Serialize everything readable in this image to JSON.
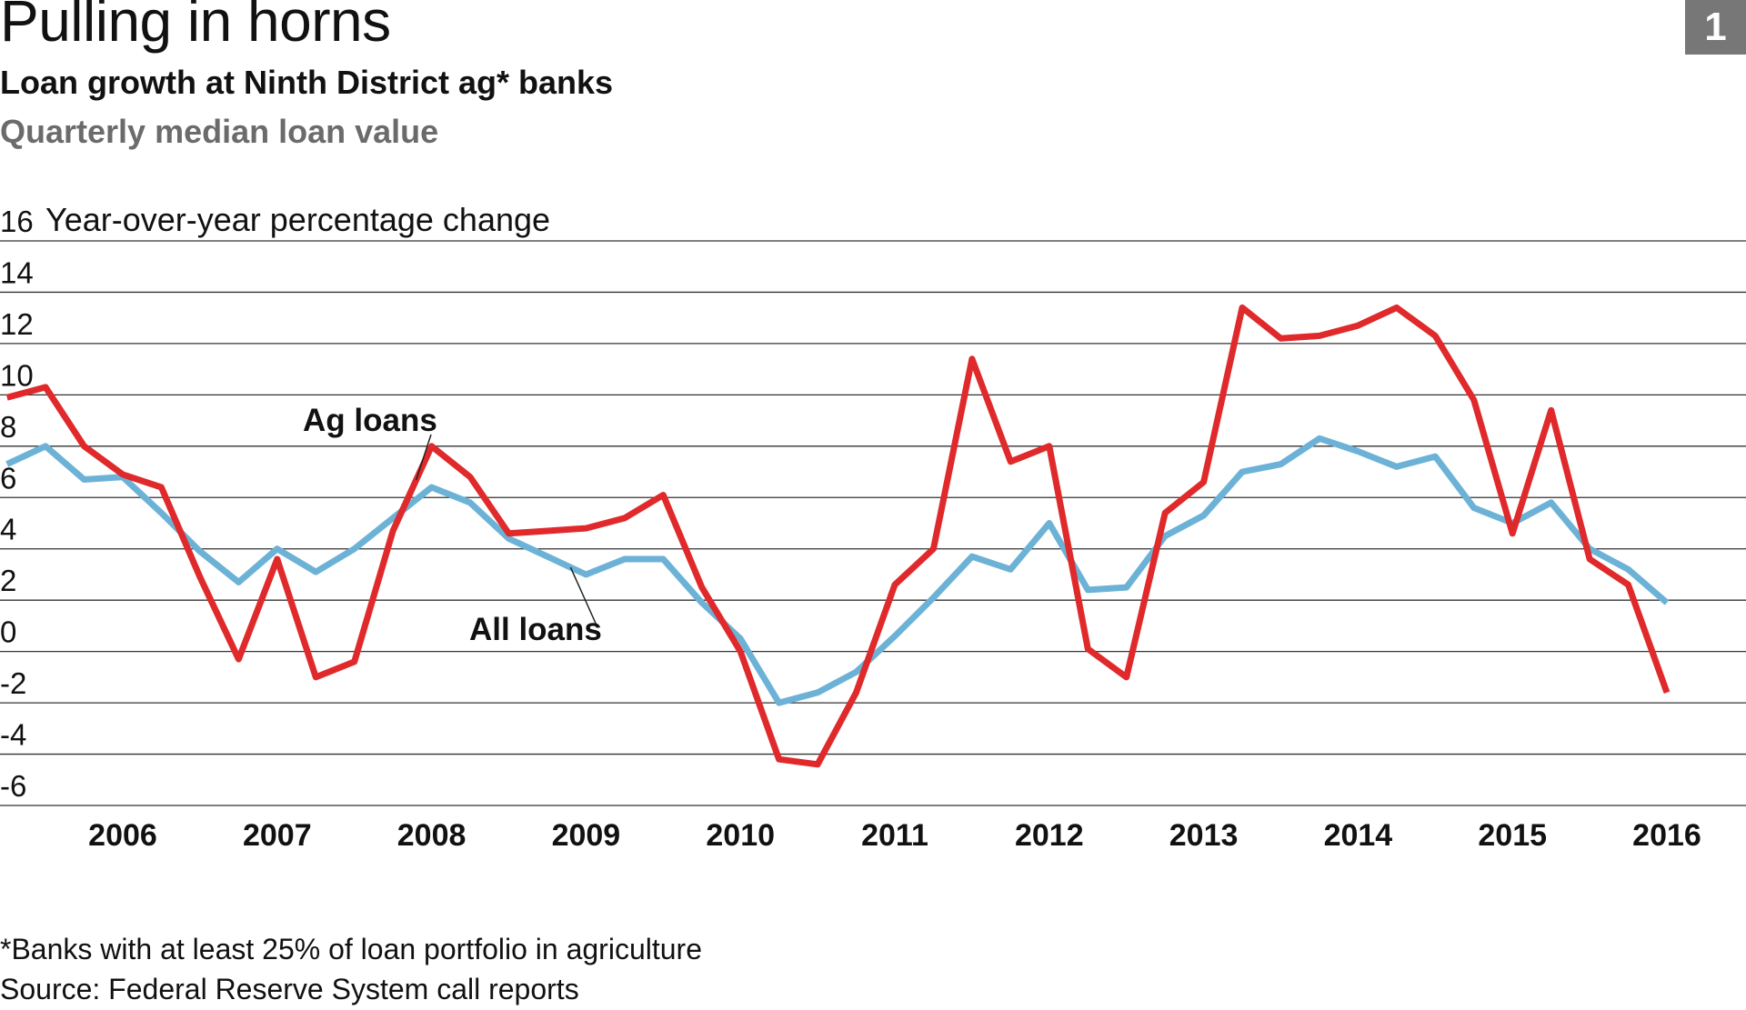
{
  "header": {
    "title": "Pulling in horns",
    "subtitle": "Loan growth at Ninth District ag* banks",
    "subsubtitle": "Quarterly median loan value",
    "badge": "1"
  },
  "footer": {
    "footnote": "*Banks with at least 25% of loan portfolio in agriculture",
    "source": "Source: Federal Reserve System call reports"
  },
  "chart_data": {
    "type": "line",
    "title": "Loan growth at Ninth District ag* banks",
    "ylabel": "Year-over-year percentage change",
    "ylim": [
      -6,
      16
    ],
    "yticks": [
      16,
      14,
      12,
      10,
      8,
      6,
      4,
      2,
      0,
      -2,
      -4,
      -6
    ],
    "ytick_labels": [
      "16",
      "14",
      "12",
      "10",
      "8",
      "6",
      "4",
      "2",
      "0",
      "-2",
      "-4",
      "-6"
    ],
    "xticks": [
      "2006",
      "2007",
      "2008",
      "2009",
      "2010",
      "2011",
      "2012",
      "2013",
      "2014",
      "2015",
      "2016"
    ],
    "grid": true,
    "x_start": 2005.25,
    "x_step": 0.25,
    "series": [
      {
        "name": "Ag loans",
        "color": "#e0292b",
        "values": [
          9.9,
          10.3,
          8.0,
          6.9,
          6.4,
          2.9,
          -0.3,
          3.6,
          -1.0,
          -0.4,
          4.7,
          8.0,
          6.8,
          4.6,
          4.7,
          4.8,
          5.2,
          6.1,
          2.5,
          0.0,
          -4.2,
          -4.4,
          -1.6,
          2.6,
          4.0,
          11.4,
          7.4,
          8.0,
          0.1,
          -1.0,
          5.4,
          6.6,
          13.4,
          12.2,
          12.3,
          12.7,
          13.4,
          12.3,
          9.8,
          4.6,
          9.4,
          3.6,
          2.6,
          -1.6
        ]
      },
      {
        "name": "All loans",
        "color": "#6cb2d6",
        "values": [
          7.3,
          8.0,
          6.7,
          6.8,
          5.4,
          3.9,
          2.7,
          4.0,
          3.1,
          4.0,
          5.2,
          6.4,
          5.8,
          4.4,
          3.7,
          3.0,
          3.6,
          3.6,
          1.9,
          0.5,
          -2.0,
          -1.6,
          -0.8,
          0.6,
          2.1,
          3.7,
          3.2,
          5.0,
          2.4,
          2.5,
          4.5,
          5.3,
          7.0,
          7.3,
          8.3,
          7.8,
          7.2,
          7.6,
          5.6,
          5.0,
          5.8,
          4.0,
          3.2,
          1.9
        ]
      }
    ],
    "annotations": [
      {
        "text": "Ag loans",
        "series": "Ag loans"
      },
      {
        "text": "All loans",
        "series": "All loans"
      }
    ]
  }
}
